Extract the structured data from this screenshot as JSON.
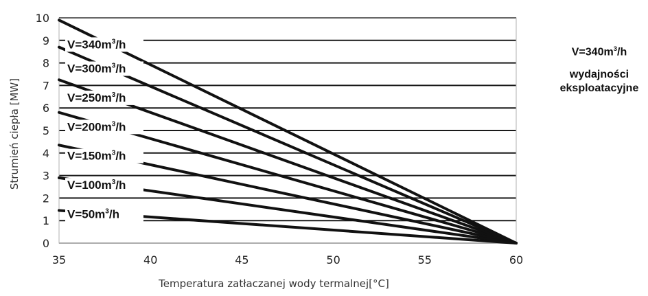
{
  "chart_data": {
    "type": "line",
    "xlabel": "Temperatura zatłaczanej wody termalnej[°C]",
    "ylabel": "Strumień ciepła [MW]",
    "xlim": [
      35,
      60
    ],
    "ylim": [
      0,
      10
    ],
    "x_ticks": [
      35,
      40,
      45,
      50,
      55,
      60
    ],
    "y_ticks": [
      0,
      1,
      2,
      3,
      4,
      5,
      6,
      7,
      8,
      9,
      10
    ],
    "grid": "horizontal",
    "series": [
      {
        "name": "V=340m³/h",
        "label_main": "V=340m",
        "label_sup": "3",
        "label_tail": "/h",
        "x": [
          35,
          60
        ],
        "y": [
          9.9,
          0
        ]
      },
      {
        "name": "V=300m³/h",
        "label_main": "V=300m",
        "label_sup": "3",
        "label_tail": "/h",
        "x": [
          35,
          60
        ],
        "y": [
          8.7,
          0
        ]
      },
      {
        "name": "V=250m³/h",
        "label_main": "V=250m",
        "label_sup": "3",
        "label_tail": "/h",
        "x": [
          35,
          60
        ],
        "y": [
          7.25,
          0
        ]
      },
      {
        "name": "V=200m³/h",
        "label_main": "V=200m",
        "label_sup": "3",
        "label_tail": "/h",
        "x": [
          35,
          60
        ],
        "y": [
          5.8,
          0
        ]
      },
      {
        "name": "V=150m³/h",
        "label_main": "V=150m",
        "label_sup": "3",
        "label_tail": "/h",
        "x": [
          35,
          60
        ],
        "y": [
          4.35,
          0
        ]
      },
      {
        "name": "V=100m³/h",
        "label_main": "V=100m",
        "label_sup": "3",
        "label_tail": "/h",
        "x": [
          35,
          60
        ],
        "y": [
          2.9,
          0
        ]
      },
      {
        "name": "V=50m³/h",
        "label_main": "V=50m",
        "label_sup": "3",
        "label_tail": "/h",
        "x": [
          35,
          60
        ],
        "y": [
          1.45,
          0
        ]
      }
    ],
    "annotation": {
      "line1_main": "V=340m",
      "line1_sup": "3",
      "line1_tail": "/h",
      "line2": "wydajności",
      "line3": "eksploatacyjne"
    },
    "colors": {
      "series": "#111111",
      "grid": "#1a1a1a",
      "frame": "#b0b0b0"
    }
  }
}
